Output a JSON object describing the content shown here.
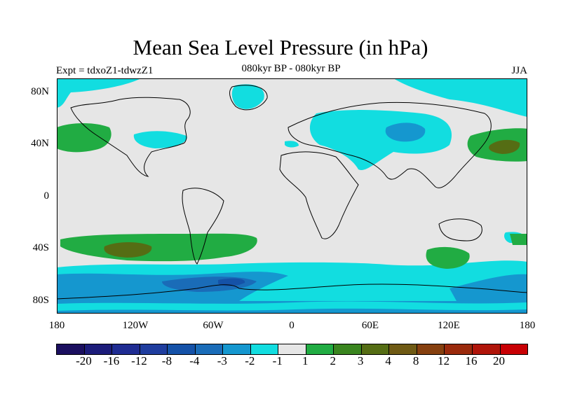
{
  "title": "Mean Sea Level Pressure (in hPa)",
  "subtitle": "080kyr BP - 080kyr BP",
  "experiment": "Expt = tdxoZ1-tdwzZ1",
  "season": "JJA",
  "y_axis_labels": [
    "80N",
    "40N",
    "0",
    "40S",
    "80S"
  ],
  "x_axis_labels": [
    "180",
    "120W",
    "60W",
    "0",
    "60E",
    "120E",
    "180"
  ],
  "legend": {
    "colors": [
      "#1b0f5f",
      "#1c1c7a",
      "#1f2c92",
      "#1f3d9e",
      "#1552a8",
      "#1a6cb8",
      "#1597cf",
      "#12dde0",
      "#e6e6e6",
      "#21ac43",
      "#3a851f",
      "#556d14",
      "#6f5a14",
      "#86400f",
      "#9a2a0c",
      "#b0150a",
      "#c80004"
    ],
    "labels": [
      "-20",
      "-16",
      "-12",
      "-8",
      "-4",
      "-3",
      "-2",
      "-1",
      "1",
      "2",
      "3",
      "4",
      "8",
      "12",
      "16",
      "20"
    ]
  },
  "palette": {
    "neutral": "#e6e6e6",
    "cyan": "#12dde0",
    "blue2": "#1597cf",
    "blue3": "#1a6cb8",
    "blue4": "#1552a8",
    "green2": "#21ac43",
    "green4": "#556d14"
  }
}
